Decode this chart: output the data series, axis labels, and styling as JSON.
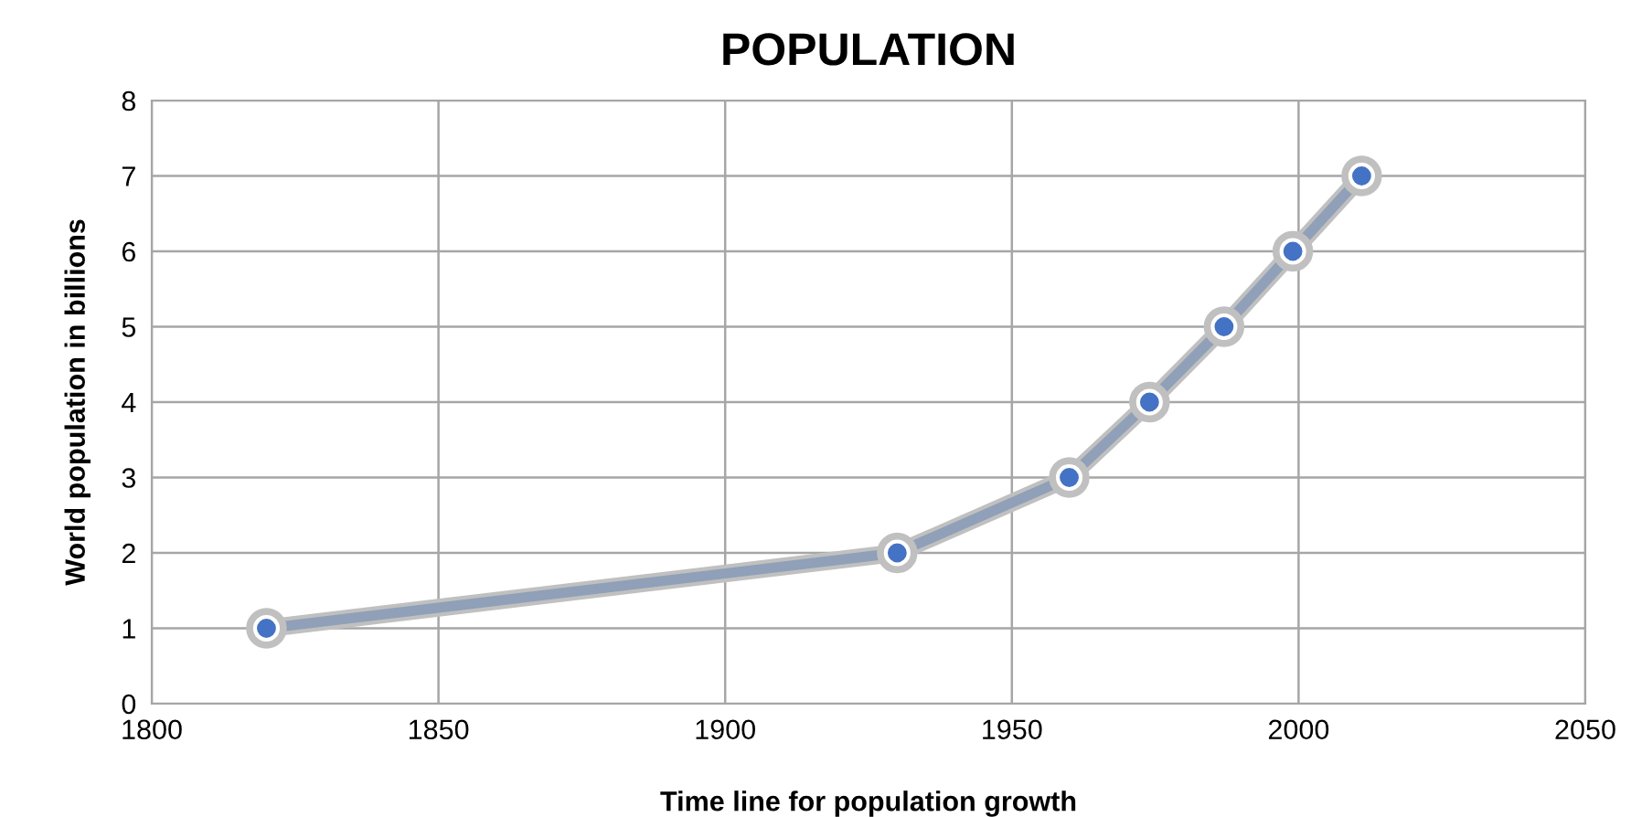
{
  "chart_data": {
    "type": "line",
    "title": "POPULATION",
    "xlabel": "Time line for population growth",
    "ylabel": "World population in billions",
    "x": [
      1820,
      1930,
      1960,
      1974,
      1987,
      1999,
      2011
    ],
    "series": [
      {
        "color": "#4472c4",
        "values": [
          1,
          2,
          3,
          4,
          5,
          6,
          7
        ]
      }
    ],
    "xlim": [
      1800,
      2050
    ],
    "xticks": [
      1800,
      1850,
      1900,
      1950,
      2000,
      2050
    ],
    "ylim": [
      0,
      8
    ],
    "yticks": [
      0,
      1,
      2,
      3,
      4,
      5,
      6,
      7,
      8
    ],
    "grid": true,
    "marker": "circle",
    "line_style": "solid"
  }
}
